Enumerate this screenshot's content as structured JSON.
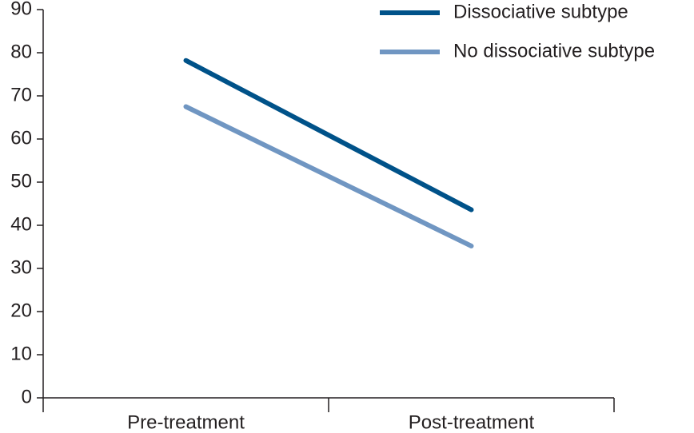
{
  "chart_data": {
    "type": "line",
    "categories": [
      "Pre-treatment",
      "Post-treatment"
    ],
    "series": [
      {
        "name": "Dissociative subtype",
        "color": "#005289",
        "values": [
          78.2,
          43.6
        ]
      },
      {
        "name": "No dissociative subtype",
        "color": "#7096c2",
        "values": [
          67.5,
          35.2
        ]
      }
    ],
    "ylim": [
      0,
      90
    ],
    "yticks": [
      0,
      10,
      20,
      30,
      40,
      50,
      60,
      70,
      80,
      90
    ],
    "legend": "upper right"
  }
}
